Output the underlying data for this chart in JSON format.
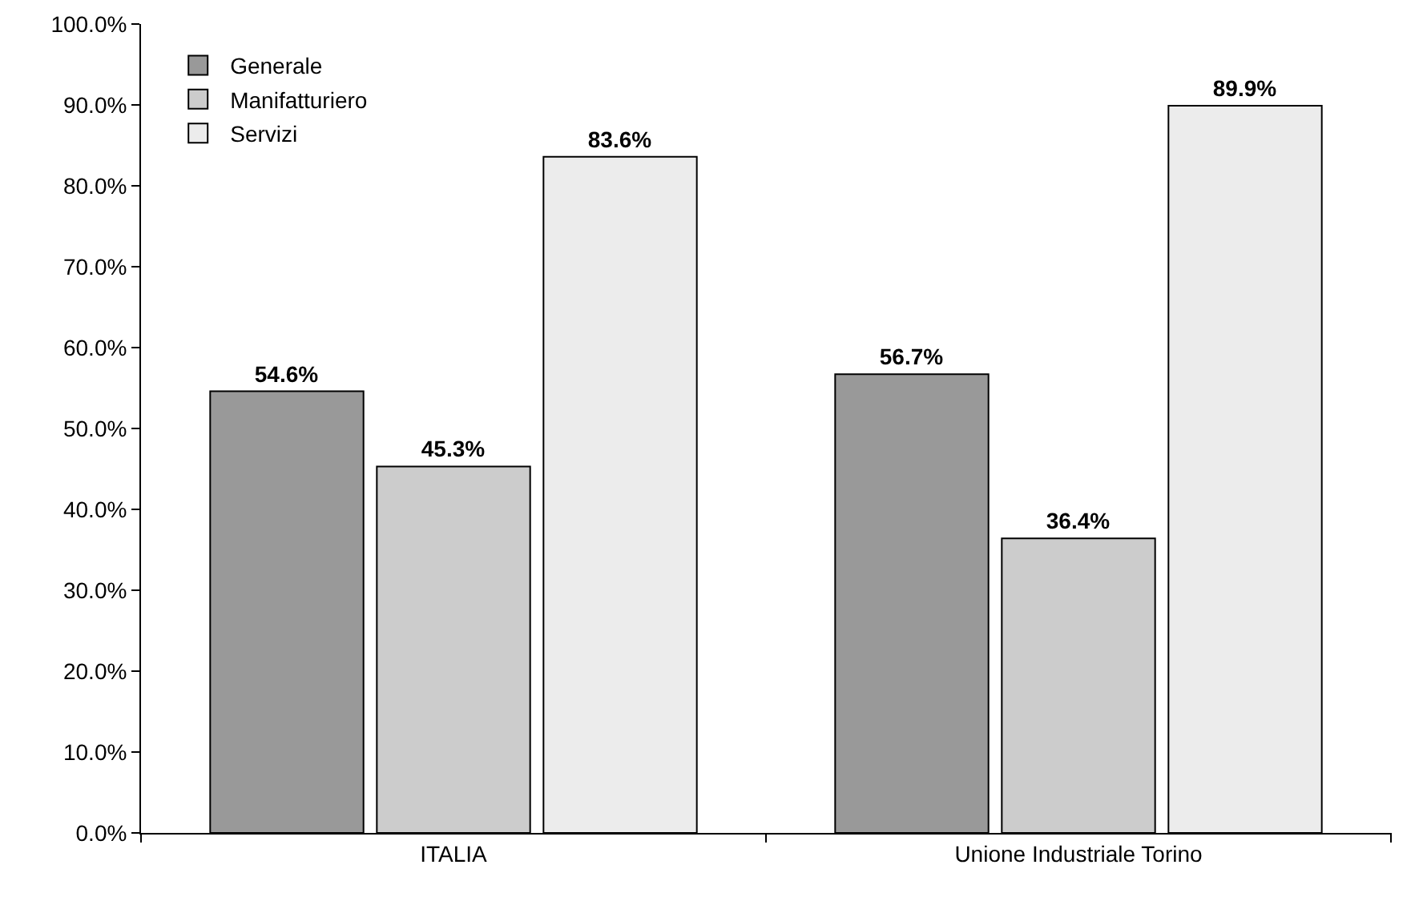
{
  "chart_data": {
    "type": "bar",
    "categories": [
      "ITALIA",
      "Unione Industriale Torino"
    ],
    "series": [
      {
        "name": "Generale",
        "color": "#999999",
        "values": [
          54.6,
          56.7
        ],
        "value_labels": [
          "54.6%",
          "56.7%"
        ]
      },
      {
        "name": "Manifatturiero",
        "color": "#cccccc",
        "values": [
          45.3,
          36.4
        ],
        "value_labels": [
          "45.3%",
          "36.4%"
        ]
      },
      {
        "name": "Servizi",
        "color": "#ececec",
        "values": [
          83.6,
          89.9
        ],
        "value_labels": [
          "83.6%",
          "89.9%"
        ]
      }
    ],
    "ylim": [
      0,
      100
    ],
    "yticks": [
      {
        "value": 0,
        "label": "0.0%"
      },
      {
        "value": 10,
        "label": "10.0%"
      },
      {
        "value": 20,
        "label": "20.0%"
      },
      {
        "value": 30,
        "label": "30.0%"
      },
      {
        "value": 40,
        "label": "40.0%"
      },
      {
        "value": 50,
        "label": "50.0%"
      },
      {
        "value": 60,
        "label": "60.0%"
      },
      {
        "value": 70,
        "label": "70.0%"
      },
      {
        "value": 80,
        "label": "80.0%"
      },
      {
        "value": 90,
        "label": "90.0%"
      },
      {
        "value": 100,
        "label": "100.0%"
      }
    ],
    "grid": false,
    "legend": "top left"
  }
}
